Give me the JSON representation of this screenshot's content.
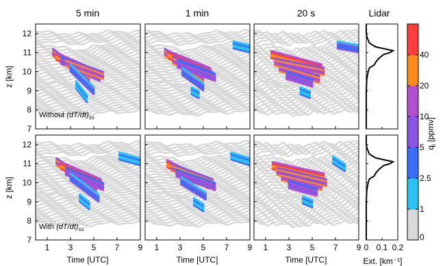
{
  "figure": {
    "column_titles": [
      "5 min",
      "1 min",
      "20 s",
      "Lidar"
    ],
    "row_labels": [
      {
        "prefix": "Without ",
        "math": "(dT/dt)",
        "sub": "ss"
      },
      {
        "prefix": "With ",
        "math": "(dT/dt)",
        "sub": "ss"
      }
    ],
    "ylabel": "z [km]",
    "xlabel": "Time [UTC]",
    "lidar_xlabel": "Ext. [km⁻¹]",
    "colorbar_label": "q",
    "colorbar_label_sub": "i",
    "colorbar_label_unit": " [ppmv]"
  },
  "chart_data": {
    "type": "scatter",
    "description": "Trajectory ice water content q_i vs time and altitude for three model time steps, without (top) and with (bottom) sub-grid cooling rate term, plus lidar extinction profile",
    "x_axis": {
      "label": "Time [UTC]",
      "range": [
        0,
        9
      ],
      "ticks": [
        1,
        3,
        5,
        7,
        9
      ]
    },
    "y_axis": {
      "label": "z [km]",
      "range": [
        7,
        12.5
      ],
      "ticks": [
        7,
        8,
        9,
        10,
        11,
        12
      ]
    },
    "lidar_axis": {
      "label": "Ext. [km⁻¹]",
      "range": [
        0,
        0.2
      ],
      "ticks": [
        "0",
        "0.1",
        "0.2"
      ]
    },
    "colorbar": {
      "label": "q_i [ppmv]",
      "tick_labels": [
        "0",
        "1",
        "2.5",
        "5",
        "10",
        "20",
        "40"
      ],
      "colors": [
        "#d9d9d9",
        "#29c2f2",
        "#3a6ef5",
        "#8a55e0",
        "#b14fcf",
        "#ff8a1e",
        "#ff3d3d"
      ]
    },
    "trajectories": {
      "count": 36,
      "start_time": 0,
      "end_time": 9,
      "start_altitude_range": [
        7.9,
        12.1
      ],
      "color": "#d9d9d9"
    },
    "panels": [
      {
        "row": "Without (dT/dt)_ss",
        "column": "5 min",
        "ice_streaks": [
          {
            "t": [
              1.5,
              4.6
            ],
            "z": [
              11.0,
              9.6
            ],
            "level": 4
          },
          {
            "t": [
              1.8,
              5.2
            ],
            "z": [
              10.8,
              9.9
            ],
            "level": 5
          },
          {
            "t": [
              2.2,
              5.5
            ],
            "z": [
              10.6,
              9.7
            ],
            "level": 3
          },
          {
            "t": [
              2.6,
              5.8
            ],
            "z": [
              10.5,
              9.8
            ],
            "level": 4
          },
          {
            "t": [
              3.0,
              5.0
            ],
            "z": [
              10.2,
              9.0
            ],
            "level": 2
          },
          {
            "t": [
              3.5,
              4.4
            ],
            "z": [
              9.3,
              8.6
            ],
            "level": 1
          }
        ]
      },
      {
        "row": "Without (dT/dt)_ss",
        "column": "1 min",
        "ice_streaks": [
          {
            "t": [
              1.7,
              5.0
            ],
            "z": [
              11.0,
              9.7
            ],
            "level": 4
          },
          {
            "t": [
              2.0,
              5.6
            ],
            "z": [
              10.9,
              10.0
            ],
            "level": 5
          },
          {
            "t": [
              2.4,
              5.8
            ],
            "z": [
              10.6,
              9.8
            ],
            "level": 4
          },
          {
            "t": [
              2.8,
              6.0
            ],
            "z": [
              10.4,
              9.7
            ],
            "level": 3
          },
          {
            "t": [
              3.2,
              5.0
            ],
            "z": [
              10.0,
              9.2
            ],
            "level": 2
          },
          {
            "t": [
              7.6,
              9.0
            ],
            "z": [
              11.4,
              11.2
            ],
            "level": 1
          },
          {
            "t": [
              4.0,
              4.6
            ],
            "z": [
              9.0,
              8.8
            ],
            "level": 1
          }
        ]
      },
      {
        "row": "Without (dT/dt)_ss",
        "column": "20 s",
        "ice_streaks": [
          {
            "t": [
              1.5,
              5.8
            ],
            "z": [
              10.9,
              10.2
            ],
            "level": 5
          },
          {
            "t": [
              1.8,
              6.0
            ],
            "z": [
              10.5,
              10.0
            ],
            "level": 4
          },
          {
            "t": [
              2.2,
              5.6
            ],
            "z": [
              10.2,
              9.6
            ],
            "level": 4
          },
          {
            "t": [
              2.8,
              5.0
            ],
            "z": [
              9.8,
              9.4
            ],
            "level": 3
          },
          {
            "t": [
              7.2,
              9.0
            ],
            "z": [
              11.4,
              11.2
            ],
            "level": 2
          },
          {
            "t": [
              4.0,
              4.8
            ],
            "z": [
              9.0,
              8.8
            ],
            "level": 1
          }
        ]
      },
      {
        "row": "With (dT/dt)_ss",
        "column": "5 min",
        "ice_streaks": [
          {
            "t": [
              1.8,
              5.2
            ],
            "z": [
              11.1,
              9.7
            ],
            "level": 4
          },
          {
            "t": [
              2.2,
              5.6
            ],
            "z": [
              10.9,
              10.0
            ],
            "level": 5
          },
          {
            "t": [
              2.6,
              5.8
            ],
            "z": [
              10.6,
              9.8
            ],
            "level": 3
          },
          {
            "t": [
              3.0,
              5.4
            ],
            "z": [
              10.3,
              9.2
            ],
            "level": 2
          },
          {
            "t": [
              7.2,
              9.0
            ],
            "z": [
              11.4,
              11.1
            ],
            "level": 1
          },
          {
            "t": [
              3.8,
              4.6
            ],
            "z": [
              9.2,
              8.8
            ],
            "level": 1
          }
        ]
      },
      {
        "row": "With (dT/dt)_ss",
        "column": "1 min",
        "ice_streaks": [
          {
            "t": [
              1.9,
              5.4
            ],
            "z": [
              11.0,
              9.9
            ],
            "level": 5
          },
          {
            "t": [
              2.3,
              5.8
            ],
            "z": [
              10.8,
              10.0
            ],
            "level": 4
          },
          {
            "t": [
              2.7,
              6.0
            ],
            "z": [
              10.5,
              9.8
            ],
            "level": 3
          },
          {
            "t": [
              3.1,
              5.2
            ],
            "z": [
              10.1,
              9.3
            ],
            "level": 2
          },
          {
            "t": [
              7.4,
              9.0
            ],
            "z": [
              11.4,
              11.1
            ],
            "level": 1
          },
          {
            "t": [
              4.2,
              5.0
            ],
            "z": [
              9.0,
              8.7
            ],
            "level": 1
          }
        ]
      },
      {
        "row": "With (dT/dt)_ss",
        "column": "20 s",
        "ice_streaks": [
          {
            "t": [
              1.6,
              6.0
            ],
            "z": [
              10.9,
              10.3
            ],
            "level": 5
          },
          {
            "t": [
              2.0,
              6.2
            ],
            "z": [
              10.6,
              10.0
            ],
            "level": 4
          },
          {
            "t": [
              2.4,
              5.8
            ],
            "z": [
              10.3,
              9.8
            ],
            "level": 4
          },
          {
            "t": [
              3.0,
              5.4
            ],
            "z": [
              9.9,
              9.5
            ],
            "level": 3
          },
          {
            "t": [
              6.8,
              7.8
            ],
            "z": [
              11.2,
              10.8
            ],
            "level": 1
          },
          {
            "t": [
              4.2,
              5.0
            ],
            "z": [
              9.1,
              8.9
            ],
            "level": 1
          }
        ]
      }
    ],
    "lidar_profile": {
      "z": [
        7.0,
        9.0,
        9.6,
        10.0,
        10.2,
        10.35,
        10.5,
        10.7,
        10.9,
        11.0,
        11.1,
        11.3,
        11.5,
        11.8,
        12.0,
        12.5
      ],
      "ext": [
        0.0,
        0.0,
        0.003,
        0.012,
        0.02,
        0.05,
        0.06,
        0.08,
        0.11,
        0.15,
        0.17,
        0.06,
        0.02,
        0.005,
        0.0,
        0.0
      ]
    }
  }
}
